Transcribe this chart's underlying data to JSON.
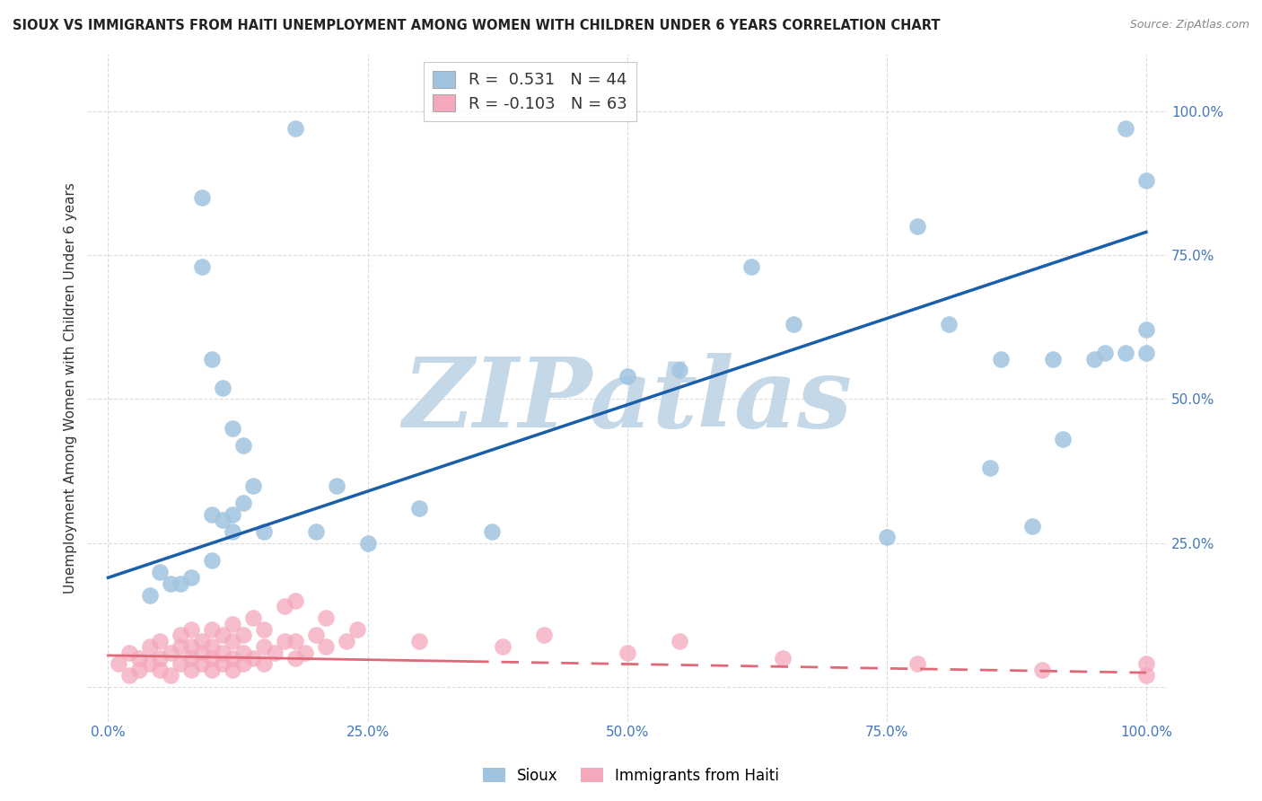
{
  "title": "SIOUX VS IMMIGRANTS FROM HAITI UNEMPLOYMENT AMONG WOMEN WITH CHILDREN UNDER 6 YEARS CORRELATION CHART",
  "source": "Source: ZipAtlas.com",
  "ylabel": "Unemployment Among Women with Children Under 6 years",
  "sioux_R": 0.531,
  "sioux_N": 44,
  "haiti_R": -0.103,
  "haiti_N": 63,
  "xlim": [
    -0.02,
    1.02
  ],
  "ylim": [
    -0.06,
    1.1
  ],
  "xticks": [
    0.0,
    0.25,
    0.5,
    0.75,
    1.0
  ],
  "yticks": [
    0.0,
    0.25,
    0.5,
    0.75,
    1.0
  ],
  "xticklabels": [
    "0.0%",
    "25.0%",
    "50.0%",
    "75.0%",
    "100.0%"
  ],
  "yticklabels": [
    "",
    "25.0%",
    "50.0%",
    "75.0%",
    "100.0%"
  ],
  "sioux_color": "#a0c4e0",
  "haiti_color": "#f4a8bc",
  "sioux_line_color": "#1a5fa8",
  "haiti_line_color": "#e06878",
  "haiti_line_dash": [
    8,
    5
  ],
  "bg_color": "#ffffff",
  "watermark": "ZIPatlas",
  "watermark_color": "#c5d8e8",
  "grid_color": "#cccccc",
  "title_color": "#222222",
  "tick_color": "#4477bb",
  "ylabel_color": "#333333",
  "sioux_x": [
    0.18,
    0.09,
    0.09,
    0.1,
    0.11,
    0.12,
    0.13,
    0.14,
    0.1,
    0.12,
    0.37,
    0.5,
    0.55,
    0.62,
    0.66,
    0.75,
    0.81,
    0.86,
    0.91,
    0.95,
    0.98,
    1.0,
    1.0,
    1.0,
    0.92,
    0.96,
    0.98,
    0.85,
    0.89,
    0.78,
    0.05,
    0.06,
    0.07,
    0.08,
    0.1,
    0.04,
    0.12,
    0.13,
    0.11,
    0.22,
    0.25,
    0.15,
    0.2,
    0.3
  ],
  "sioux_y": [
    0.97,
    0.85,
    0.73,
    0.57,
    0.52,
    0.45,
    0.42,
    0.35,
    0.3,
    0.27,
    0.27,
    0.54,
    0.55,
    0.73,
    0.63,
    0.26,
    0.63,
    0.57,
    0.57,
    0.57,
    0.97,
    0.88,
    0.62,
    0.58,
    0.43,
    0.58,
    0.58,
    0.38,
    0.28,
    0.8,
    0.2,
    0.18,
    0.18,
    0.19,
    0.22,
    0.16,
    0.3,
    0.32,
    0.29,
    0.35,
    0.25,
    0.27,
    0.27,
    0.31
  ],
  "haiti_x": [
    0.01,
    0.02,
    0.02,
    0.03,
    0.03,
    0.04,
    0.04,
    0.05,
    0.05,
    0.05,
    0.06,
    0.06,
    0.07,
    0.07,
    0.07,
    0.08,
    0.08,
    0.08,
    0.08,
    0.09,
    0.09,
    0.09,
    0.1,
    0.1,
    0.1,
    0.1,
    0.11,
    0.11,
    0.11,
    0.12,
    0.12,
    0.12,
    0.12,
    0.13,
    0.13,
    0.13,
    0.14,
    0.14,
    0.15,
    0.15,
    0.15,
    0.16,
    0.17,
    0.17,
    0.18,
    0.18,
    0.18,
    0.19,
    0.2,
    0.21,
    0.21,
    0.23,
    0.24,
    0.3,
    0.38,
    0.42,
    0.5,
    0.55,
    0.65,
    0.78,
    0.9,
    1.0,
    1.0
  ],
  "haiti_y": [
    0.04,
    0.02,
    0.06,
    0.03,
    0.05,
    0.04,
    0.07,
    0.03,
    0.05,
    0.08,
    0.02,
    0.06,
    0.04,
    0.07,
    0.09,
    0.03,
    0.05,
    0.07,
    0.1,
    0.04,
    0.06,
    0.08,
    0.03,
    0.05,
    0.07,
    0.1,
    0.04,
    0.06,
    0.09,
    0.03,
    0.05,
    0.08,
    0.11,
    0.04,
    0.06,
    0.09,
    0.05,
    0.12,
    0.04,
    0.07,
    0.1,
    0.06,
    0.08,
    0.14,
    0.05,
    0.08,
    0.15,
    0.06,
    0.09,
    0.07,
    0.12,
    0.08,
    0.1,
    0.08,
    0.07,
    0.09,
    0.06,
    0.08,
    0.05,
    0.04,
    0.03,
    0.02,
    0.04
  ]
}
